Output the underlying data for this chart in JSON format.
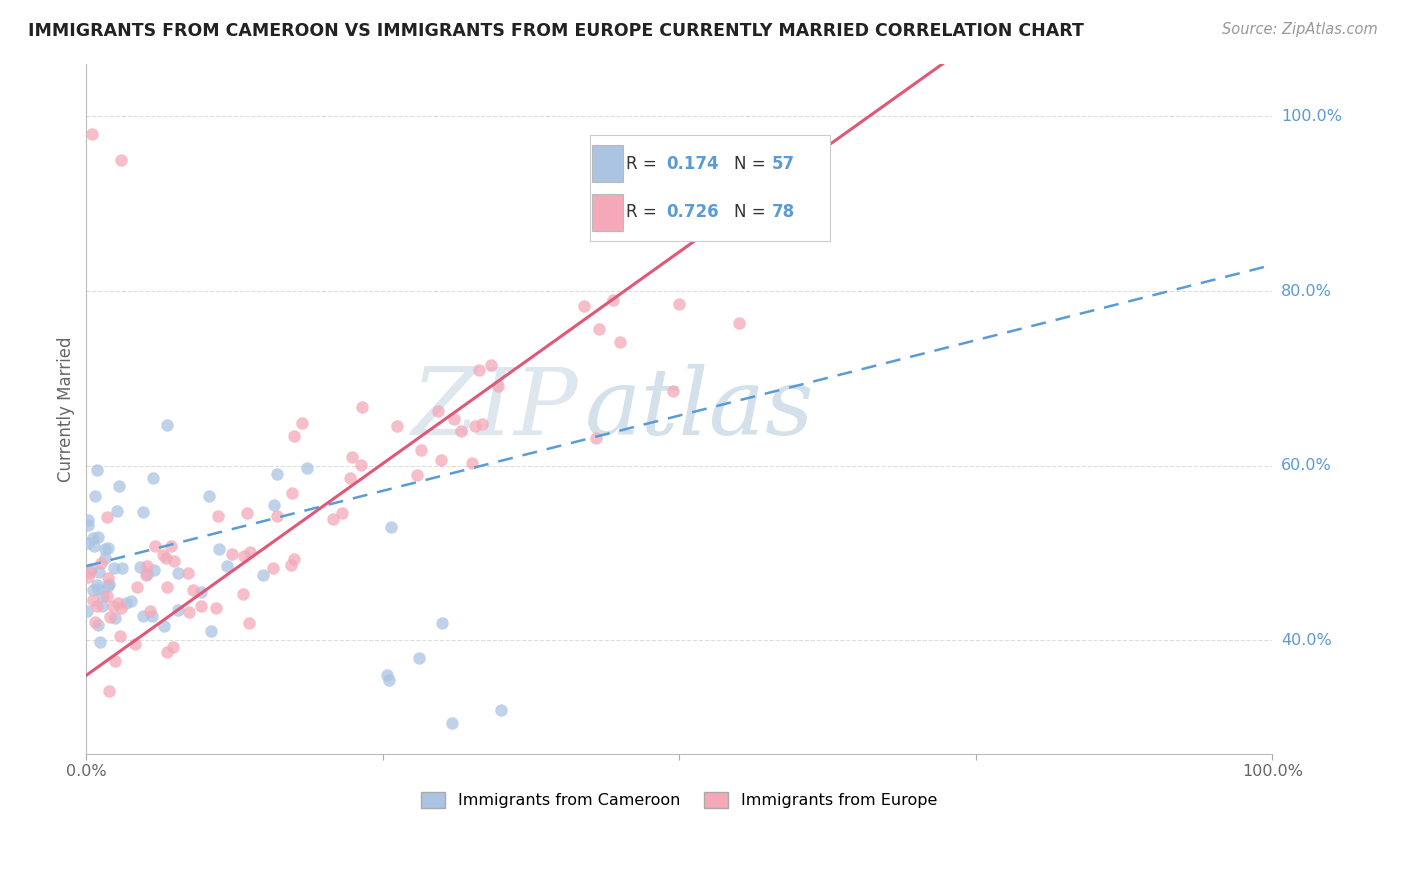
{
  "title": "IMMIGRANTS FROM CAMEROON VS IMMIGRANTS FROM EUROPE CURRENTLY MARRIED CORRELATION CHART",
  "source": "Source: ZipAtlas.com",
  "ylabel": "Currently Married",
  "blue_R": 0.174,
  "blue_N": 57,
  "pink_R": 0.726,
  "pink_N": 78,
  "blue_color": "#aac4e2",
  "pink_color": "#f4a8b8",
  "blue_line_color": "#5b9bd5",
  "pink_line_color": "#e05878",
  "legend_blue_label": "Immigrants from Cameroon",
  "legend_pink_label": "Immigrants from Europe",
  "background_color": "#ffffff",
  "grid_color": "#dddddd",
  "xlim": [
    0.0,
    1.0
  ],
  "ylim": [
    0.27,
    1.06
  ],
  "ytick_vals": [
    0.4,
    0.6,
    0.8,
    1.0
  ],
  "ytick_labels": [
    "40.0%",
    "60.0%",
    "80.0%",
    "100.0%"
  ],
  "watermark_zip": "ZIP",
  "watermark_atlas": "atlas",
  "watermark_zip_color": "#d0dce8",
  "watermark_atlas_color": "#b8ccdc"
}
